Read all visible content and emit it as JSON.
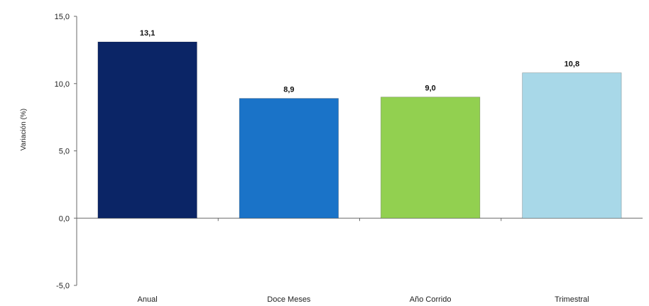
{
  "chart_data": {
    "type": "bar",
    "categories": [
      "Anual",
      "Doce Meses",
      "Año Corrido",
      "Trimestral"
    ],
    "values": [
      13.1,
      8.9,
      9.0,
      10.8
    ],
    "data_labels": [
      "13,1",
      "8,9",
      "9,0",
      "10,8"
    ],
    "colors": [
      "#0b2566",
      "#1a73c8",
      "#92d050",
      "#a8d8e8"
    ],
    "ylabel": "Variación (%)",
    "ylim": [
      -5,
      15
    ],
    "yticks": [
      15,
      10,
      5,
      0,
      -5
    ],
    "ytick_labels": [
      "15,0",
      "10,0",
      "5,0",
      "0,0",
      "-5,0"
    ],
    "grid": false,
    "legend": "none"
  }
}
